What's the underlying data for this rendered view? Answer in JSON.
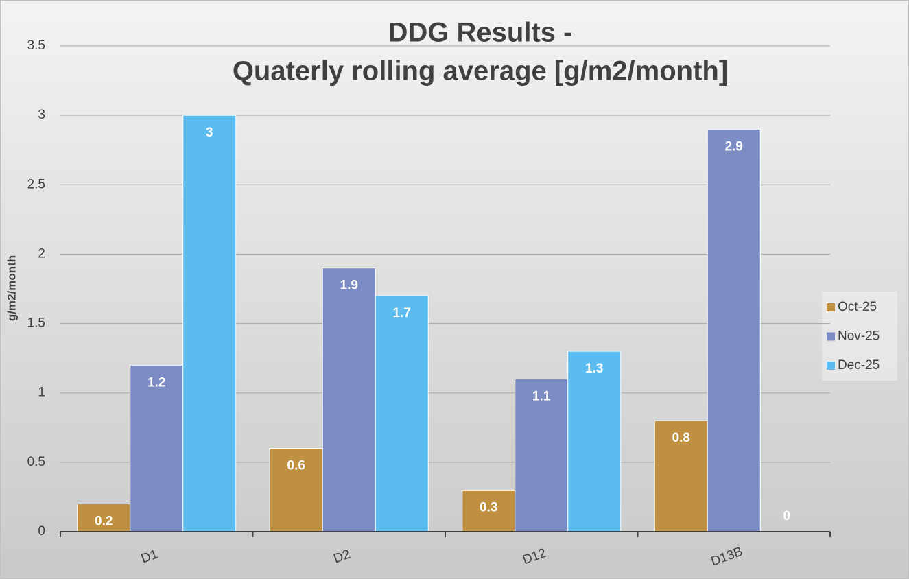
{
  "chart_data": {
    "type": "bar",
    "title": [
      "DDG Results -",
      "Quaterly rolling average [g/m2/month]"
    ],
    "y_label": "g/m2/month",
    "categories": [
      "D1",
      "D2",
      "D12",
      "D13B"
    ],
    "series": [
      {
        "name": "Oct-25",
        "color": "#bf8f42",
        "values": [
          0.2,
          0.6,
          0.3,
          0.8
        ]
      },
      {
        "name": "Nov-25",
        "color": "#7b8bc4",
        "values": [
          1.2,
          1.9,
          1.1,
          2.9
        ]
      },
      {
        "name": "Dec-25",
        "color": "#5bbdef",
        "values": [
          3,
          1.7,
          1.3,
          0
        ]
      }
    ],
    "ylim": [
      0,
      3.5
    ],
    "yticks": [
      0,
      0.5,
      1,
      1.5,
      2,
      2.5,
      3,
      3.5
    ],
    "grid": true,
    "legend": "right"
  }
}
